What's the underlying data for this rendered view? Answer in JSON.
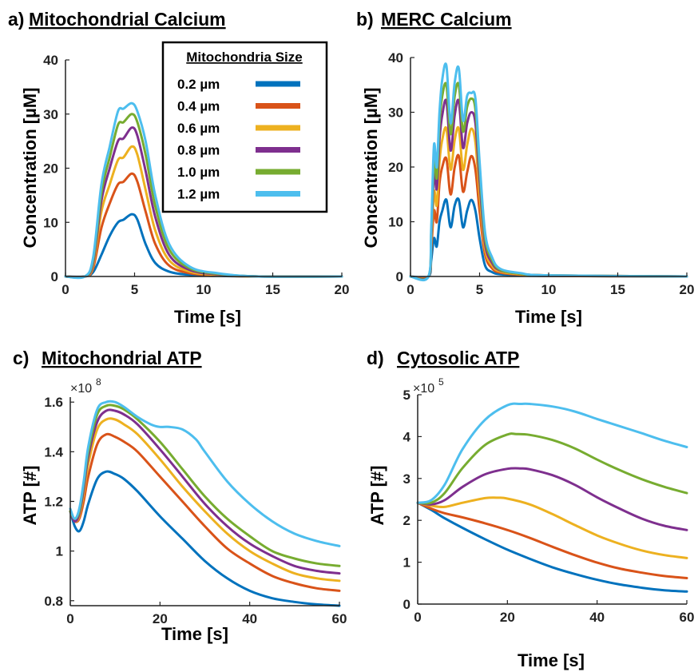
{
  "series_names": [
    "0.2 µm",
    "0.4 µm",
    "0.6 µm",
    "0.8 µm",
    "1.0 µm",
    "1.2 µm"
  ],
  "colors": [
    "#0072BD",
    "#D95319",
    "#EDB120",
    "#7E2F8E",
    "#77AC30",
    "#4DBEEE"
  ],
  "legend_title": "Mitochondria Size",
  "chart_data": [
    {
      "type": "line",
      "panel_letter": "a)",
      "title": "Mitochondrial Calcium",
      "xlabel": "Time [s]",
      "ylabel": "Concentration [µM]",
      "xlim": [
        0,
        20
      ],
      "ylim": [
        0,
        40
      ],
      "xticks": [
        0,
        5,
        10,
        15,
        20
      ],
      "yticks": [
        0,
        10,
        20,
        30,
        40
      ],
      "legend": "top-right",
      "grid": false,
      "series": [
        {
          "name": "0.2 µm",
          "x": [
            0,
            1.4,
            2,
            2.6,
            3.2,
            3.8,
            4.2,
            4.8,
            5.2,
            5.8,
            6.5,
            7.5,
            9,
            11,
            14,
            20
          ],
          "y": [
            0,
            0,
            0.8,
            4,
            7.5,
            10,
            10.5,
            11.5,
            10.5,
            6,
            2.5,
            0.9,
            0.3,
            0.1,
            0,
            0
          ]
        },
        {
          "name": "0.4 µm",
          "x": [
            0,
            1.4,
            2,
            2.6,
            3.2,
            3.8,
            4.2,
            4.8,
            5.2,
            5.8,
            6.5,
            7.5,
            9,
            11,
            14,
            20
          ],
          "y": [
            0,
            0,
            1.5,
            9,
            13.5,
            17,
            17.5,
            19,
            17.5,
            12,
            6,
            2,
            0.6,
            0.2,
            0,
            0
          ]
        },
        {
          "name": "0.6 µm",
          "x": [
            0,
            1.4,
            2,
            2.6,
            3.2,
            3.8,
            4.2,
            4.8,
            5.2,
            5.8,
            6.5,
            7.5,
            9,
            11,
            14,
            20
          ],
          "y": [
            0,
            0,
            2,
            12,
            17,
            21.5,
            22,
            24,
            22.5,
            16,
            8.5,
            3,
            0.9,
            0.3,
            0,
            0
          ]
        },
        {
          "name": "0.8 µm",
          "x": [
            0,
            1.4,
            2,
            2.6,
            3.2,
            3.8,
            4.2,
            4.8,
            5.2,
            5.8,
            6.5,
            7.5,
            9,
            11,
            14,
            20
          ],
          "y": [
            0,
            0,
            2.5,
            14,
            20,
            25,
            25.5,
            27.5,
            26,
            19.5,
            11,
            4,
            1.2,
            0.4,
            0,
            0
          ]
        },
        {
          "name": "1.0 µm",
          "x": [
            0,
            1.4,
            2,
            2.6,
            3.2,
            3.8,
            4.2,
            4.8,
            5.2,
            5.8,
            6.5,
            7.5,
            9,
            11,
            14,
            20
          ],
          "y": [
            0,
            0,
            3,
            15.5,
            22,
            28,
            28.5,
            30,
            28.5,
            22.5,
            13,
            5,
            1.5,
            0.5,
            0,
            0
          ]
        },
        {
          "name": "1.2 µm",
          "x": [
            0,
            1.4,
            2,
            2.6,
            3.2,
            3.8,
            4.2,
            4.8,
            5.2,
            5.8,
            6.5,
            7.5,
            9,
            11,
            14,
            20
          ],
          "y": [
            0,
            0,
            3.5,
            17,
            24,
            30.5,
            31,
            32,
            30.5,
            25,
            15,
            6,
            1.8,
            0.6,
            0,
            0
          ]
        }
      ]
    },
    {
      "type": "line",
      "panel_letter": "b)",
      "title": "MERC Calcium",
      "xlabel": "Time [s]",
      "ylabel": "Concentration [µM]",
      "xlim": [
        0,
        20
      ],
      "ylim": [
        0,
        40
      ],
      "xticks": [
        0,
        5,
        10,
        15,
        20
      ],
      "yticks": [
        0,
        10,
        20,
        30,
        40
      ],
      "grid": false,
      "series": [
        {
          "name": "0.2 µm",
          "x": [
            0,
            1.3,
            1.5,
            1.7,
            1.9,
            2.1,
            2.3,
            2.6,
            2.9,
            3.2,
            3.5,
            3.8,
            4.1,
            4.4,
            4.7,
            5.0,
            5.4,
            5.9,
            6.5,
            8,
            10,
            20
          ],
          "y": [
            0,
            0,
            3,
            7,
            5.5,
            10,
            12,
            14,
            9,
            13,
            14,
            9,
            12,
            14,
            12,
            7,
            2,
            0.8,
            0.4,
            0.2,
            0.1,
            0
          ]
        },
        {
          "name": "0.4 µm",
          "x": [
            0,
            1.3,
            1.5,
            1.7,
            1.9,
            2.1,
            2.3,
            2.6,
            2.9,
            3.2,
            3.5,
            3.8,
            4.1,
            4.4,
            4.7,
            5.0,
            5.4,
            5.9,
            6.5,
            8,
            10,
            20
          ],
          "y": [
            0,
            0,
            5,
            12,
            10,
            17,
            20,
            21.5,
            15,
            20,
            22,
            15.5,
            19,
            22,
            19.5,
            12,
            4,
            1.5,
            0.7,
            0.3,
            0.1,
            0
          ]
        },
        {
          "name": "0.6 µm",
          "x": [
            0,
            1.3,
            1.5,
            1.7,
            1.9,
            2.1,
            2.3,
            2.6,
            2.9,
            3.2,
            3.5,
            3.8,
            4.1,
            4.4,
            4.7,
            5.0,
            5.4,
            5.9,
            6.5,
            8,
            10,
            20
          ],
          "y": [
            0,
            0,
            6,
            15.5,
            13,
            21,
            25,
            27,
            19.5,
            25,
            27,
            19.5,
            24,
            27,
            24.5,
            15,
            5,
            2,
            0.9,
            0.4,
            0.2,
            0
          ]
        },
        {
          "name": "0.8 µm",
          "x": [
            0,
            1.3,
            1.5,
            1.7,
            1.9,
            2.1,
            2.3,
            2.6,
            2.9,
            3.2,
            3.5,
            3.8,
            4.1,
            4.4,
            4.7,
            5.0,
            5.4,
            5.9,
            6.5,
            8,
            10,
            20
          ],
          "y": [
            0,
            0,
            7,
            19,
            16,
            25,
            29.5,
            32,
            23,
            29.5,
            32,
            23.5,
            28,
            30,
            28,
            17.5,
            6,
            2.5,
            1.1,
            0.5,
            0.2,
            0
          ]
        },
        {
          "name": "1.0 µm",
          "x": [
            0,
            1.3,
            1.5,
            1.7,
            1.9,
            2.1,
            2.3,
            2.6,
            2.9,
            3.2,
            3.5,
            3.8,
            4.1,
            4.4,
            4.7,
            5.0,
            5.4,
            5.9,
            6.5,
            8,
            10,
            20
          ],
          "y": [
            0,
            0,
            8,
            21.5,
            18,
            28,
            33,
            35,
            26,
            33,
            35,
            26.5,
            31,
            32.5,
            30.5,
            19.5,
            7,
            3,
            1.2,
            0.5,
            0.2,
            0
          ]
        },
        {
          "name": "1.2 µm",
          "x": [
            0,
            1.3,
            1.5,
            1.7,
            1.9,
            2.1,
            2.3,
            2.6,
            2.9,
            3.2,
            3.5,
            3.8,
            4.1,
            4.4,
            4.7,
            5.0,
            5.4,
            5.9,
            6.5,
            8,
            10,
            20
          ],
          "y": [
            0,
            0,
            9,
            24,
            20,
            30,
            36,
            38.5,
            28,
            35.5,
            38,
            28.5,
            33,
            33.5,
            32.5,
            21,
            8,
            3.5,
            1.4,
            0.6,
            0.2,
            0
          ]
        }
      ]
    },
    {
      "type": "line",
      "panel_letter": "c)",
      "title": "Mitochondrial ATP",
      "xlabel": "Time [s]",
      "ylabel": "ATP [#]",
      "y_multiplier": "×10",
      "y_exponent": "8",
      "xlim": [
        0,
        60
      ],
      "ylim": [
        0.78,
        1.62
      ],
      "xticks": [
        0,
        20,
        40,
        60
      ],
      "yticks": [
        0.8,
        1,
        1.2,
        1.4,
        1.6
      ],
      "ytick_labels": [
        "0.8",
        "1",
        "1.2",
        "1.4",
        "1.6"
      ],
      "grid": false,
      "series": [
        {
          "name": "0.2 µm",
          "x": [
            0,
            1,
            2,
            3,
            4,
            6,
            8,
            10,
            12,
            15,
            20,
            25,
            30,
            35,
            40,
            45,
            50,
            55,
            60
          ],
          "y": [
            1.16,
            1.1,
            1.08,
            1.12,
            1.19,
            1.29,
            1.32,
            1.31,
            1.29,
            1.24,
            1.14,
            1.05,
            0.96,
            0.89,
            0.84,
            0.81,
            0.795,
            0.785,
            0.78
          ]
        },
        {
          "name": "0.4 µm",
          "x": [
            0,
            1,
            2,
            3,
            4,
            6,
            8,
            10,
            12,
            15,
            20,
            25,
            30,
            35,
            40,
            45,
            50,
            55,
            60
          ],
          "y": [
            1.16,
            1.12,
            1.13,
            1.2,
            1.3,
            1.43,
            1.47,
            1.46,
            1.44,
            1.4,
            1.3,
            1.2,
            1.1,
            1.01,
            0.95,
            0.9,
            0.87,
            0.85,
            0.84
          ]
        },
        {
          "name": "0.6 µm",
          "x": [
            0,
            1,
            2,
            3,
            4,
            6,
            8,
            10,
            12,
            15,
            20,
            25,
            30,
            35,
            40,
            45,
            50,
            55,
            60
          ],
          "y": [
            1.16,
            1.12,
            1.14,
            1.23,
            1.35,
            1.49,
            1.53,
            1.53,
            1.51,
            1.47,
            1.37,
            1.26,
            1.16,
            1.07,
            1.0,
            0.95,
            0.91,
            0.89,
            0.88
          ]
        },
        {
          "name": "0.8 µm",
          "x": [
            0,
            1,
            2,
            3,
            4,
            6,
            8,
            10,
            12,
            15,
            20,
            25,
            30,
            35,
            40,
            45,
            50,
            55,
            60
          ],
          "y": [
            1.16,
            1.12,
            1.15,
            1.25,
            1.38,
            1.52,
            1.565,
            1.565,
            1.55,
            1.51,
            1.41,
            1.3,
            1.19,
            1.1,
            1.03,
            0.98,
            0.94,
            0.92,
            0.91
          ]
        },
        {
          "name": "1.0 µm",
          "x": [
            0,
            1,
            2,
            3,
            4,
            6,
            8,
            10,
            12,
            15,
            20,
            25,
            30,
            35,
            40,
            45,
            50,
            55,
            60
          ],
          "y": [
            1.16,
            1.13,
            1.16,
            1.27,
            1.4,
            1.55,
            1.585,
            1.585,
            1.57,
            1.53,
            1.44,
            1.33,
            1.22,
            1.13,
            1.06,
            1.0,
            0.97,
            0.95,
            0.94
          ]
        },
        {
          "name": "1.2 µm",
          "x": [
            0,
            1,
            2,
            3,
            4,
            6,
            8,
            10,
            12,
            15,
            18,
            20,
            22,
            25,
            28,
            30,
            35,
            40,
            45,
            50,
            55,
            60
          ],
          "y": [
            1.17,
            1.13,
            1.17,
            1.28,
            1.42,
            1.57,
            1.6,
            1.6,
            1.58,
            1.54,
            1.51,
            1.5,
            1.5,
            1.49,
            1.45,
            1.4,
            1.28,
            1.19,
            1.12,
            1.07,
            1.04,
            1.02
          ]
        }
      ]
    },
    {
      "type": "line",
      "panel_letter": "d)",
      "title": "Cytosolic ATP",
      "xlabel": "Time [s]",
      "ylabel": "ATP [#]",
      "y_multiplier": "×10",
      "y_exponent": "5",
      "xlim": [
        0,
        60
      ],
      "ylim": [
        0,
        5
      ],
      "xticks": [
        0,
        20,
        40,
        60
      ],
      "yticks": [
        0,
        1,
        2,
        3,
        4,
        5
      ],
      "grid": false,
      "series": [
        {
          "name": "0.2 µm",
          "x": [
            0,
            3,
            6,
            10,
            15,
            20,
            25,
            30,
            35,
            40,
            45,
            50,
            55,
            60
          ],
          "y": [
            2.42,
            2.25,
            2.05,
            1.82,
            1.55,
            1.3,
            1.08,
            0.88,
            0.72,
            0.58,
            0.47,
            0.39,
            0.33,
            0.3
          ]
        },
        {
          "name": "0.4 µm",
          "x": [
            0,
            3,
            6,
            10,
            15,
            20,
            25,
            30,
            35,
            40,
            45,
            50,
            55,
            60
          ],
          "y": [
            2.42,
            2.28,
            2.17,
            2.07,
            1.93,
            1.77,
            1.58,
            1.37,
            1.17,
            0.99,
            0.85,
            0.75,
            0.67,
            0.62
          ]
        },
        {
          "name": "0.6 µm",
          "x": [
            0,
            3,
            6,
            10,
            15,
            18,
            20,
            25,
            30,
            35,
            40,
            45,
            50,
            55,
            60
          ],
          "y": [
            2.42,
            2.35,
            2.32,
            2.42,
            2.53,
            2.54,
            2.52,
            2.38,
            2.15,
            1.89,
            1.64,
            1.44,
            1.28,
            1.17,
            1.1
          ]
        },
        {
          "name": "0.8 µm",
          "x": [
            0,
            3,
            6,
            10,
            15,
            20,
            23,
            25,
            30,
            35,
            40,
            45,
            50,
            55,
            60
          ],
          "y": [
            2.42,
            2.38,
            2.48,
            2.8,
            3.1,
            3.23,
            3.24,
            3.22,
            3.08,
            2.85,
            2.55,
            2.28,
            2.04,
            1.87,
            1.77
          ]
        },
        {
          "name": "1.0 µm",
          "x": [
            0,
            3,
            6,
            10,
            15,
            20,
            22,
            25,
            30,
            35,
            40,
            45,
            50,
            55,
            60
          ],
          "y": [
            2.42,
            2.42,
            2.65,
            3.25,
            3.8,
            4.05,
            4.06,
            4.04,
            3.92,
            3.72,
            3.45,
            3.2,
            2.98,
            2.8,
            2.65
          ]
        },
        {
          "name": "1.2 µm",
          "x": [
            0,
            3,
            6,
            10,
            15,
            20,
            23,
            25,
            30,
            35,
            40,
            45,
            50,
            55,
            60
          ],
          "y": [
            2.42,
            2.48,
            2.85,
            3.7,
            4.4,
            4.75,
            4.78,
            4.78,
            4.72,
            4.6,
            4.42,
            4.25,
            4.08,
            3.9,
            3.75
          ]
        }
      ]
    }
  ]
}
